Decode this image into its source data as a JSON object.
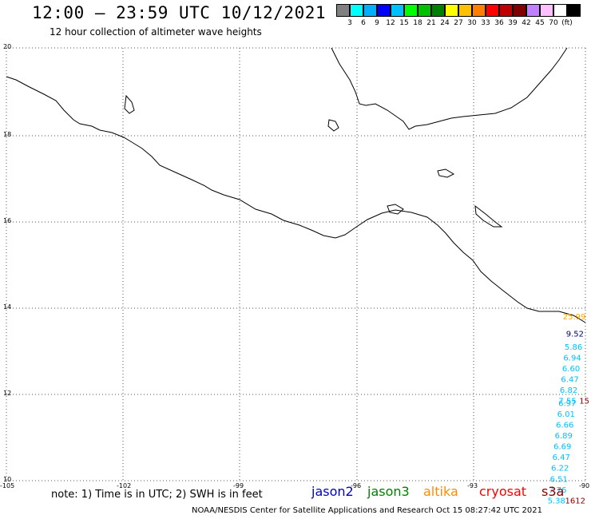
{
  "title": "12:00 – 23:59 UTC 10/12/2021",
  "subtitle": "12 hour collection of altimeter wave heights",
  "legend": {
    "colors": [
      "#808080",
      "#00ffff",
      "#00b0ff",
      "#0000ff",
      "#00c0ff",
      "#00ff00",
      "#00c000",
      "#008000",
      "#ffff00",
      "#ffc000",
      "#ff8000",
      "#ff0000",
      "#c00000",
      "#800000",
      "#c080ff",
      "#ffc0ff",
      "#ffffff",
      "#000000"
    ],
    "labels": [
      "3",
      "6",
      "9",
      "12",
      "15",
      "18",
      "21",
      "24",
      "27",
      "30",
      "33",
      "36",
      "39",
      "42",
      "45",
      "70",
      "(ft)"
    ]
  },
  "axes": {
    "lat_labels": [
      "20",
      "18",
      "16",
      "14",
      "12",
      "10"
    ],
    "lon_labels": [
      "-105",
      "-102",
      "-99",
      "-96",
      "-93",
      "-90"
    ]
  },
  "measurements": [
    {
      "value": "25.99",
      "lat": 13.8,
      "color": "#ffa500"
    },
    {
      "value": "9.52",
      "lat": 13.4,
      "color": "#000080"
    },
    {
      "value": "5.86",
      "lat": 13.1,
      "color": "#00bfff"
    },
    {
      "value": "6.94",
      "lat": 12.85,
      "color": "#00bfff"
    },
    {
      "value": "6.60",
      "lat": 12.6,
      "color": "#00bfff"
    },
    {
      "value": "6.47",
      "lat": 12.35,
      "color": "#00bfff"
    },
    {
      "value": "6.82",
      "lat": 12.1,
      "color": "#00bfff"
    },
    {
      "value": "7.55",
      "lat": 11.85,
      "color": "#00bfff"
    },
    {
      "value": "6.97",
      "lat": 11.8,
      "color": "#00bfff"
    },
    {
      "value": "15",
      "lat": 11.85,
      "color": "#800000"
    },
    {
      "value": "6.01",
      "lat": 11.55,
      "color": "#00bfff"
    },
    {
      "value": "6.66",
      "lat": 11.3,
      "color": "#00bfff"
    },
    {
      "value": "6.89",
      "lat": 11.05,
      "color": "#00bfff"
    },
    {
      "value": "6.69",
      "lat": 10.8,
      "color": "#00bfff"
    },
    {
      "value": "6.47",
      "lat": 10.55,
      "color": "#00bfff"
    },
    {
      "value": "6.22",
      "lat": 10.3,
      "color": "#00bfff"
    },
    {
      "value": "6.51",
      "lat": 10.05,
      "color": "#00bfff"
    },
    {
      "value": "7.76",
      "lat": 9.8,
      "color": "#00bfff"
    },
    {
      "value": "5.38",
      "lat": 9.55,
      "color": "#00bfff"
    },
    {
      "value": "1612",
      "lat": 9.55,
      "color": "#800000"
    }
  ],
  "note": "note: 1) Time is in UTC; 2) SWH is in feet",
  "satellites": [
    {
      "name": "jason2",
      "color": "#0000cd"
    },
    {
      "name": "jason3",
      "color": "#008000"
    },
    {
      "name": "altika",
      "color": "#ff8c00"
    },
    {
      "name": "cryosat",
      "color": "#ff0000"
    },
    {
      "name": "s3a",
      "color": "#8b0000"
    }
  ],
  "credit": "NOAA/NESDIS Center for Satellite Applications and Research    Oct 15 08:27:42 UTC 2021"
}
